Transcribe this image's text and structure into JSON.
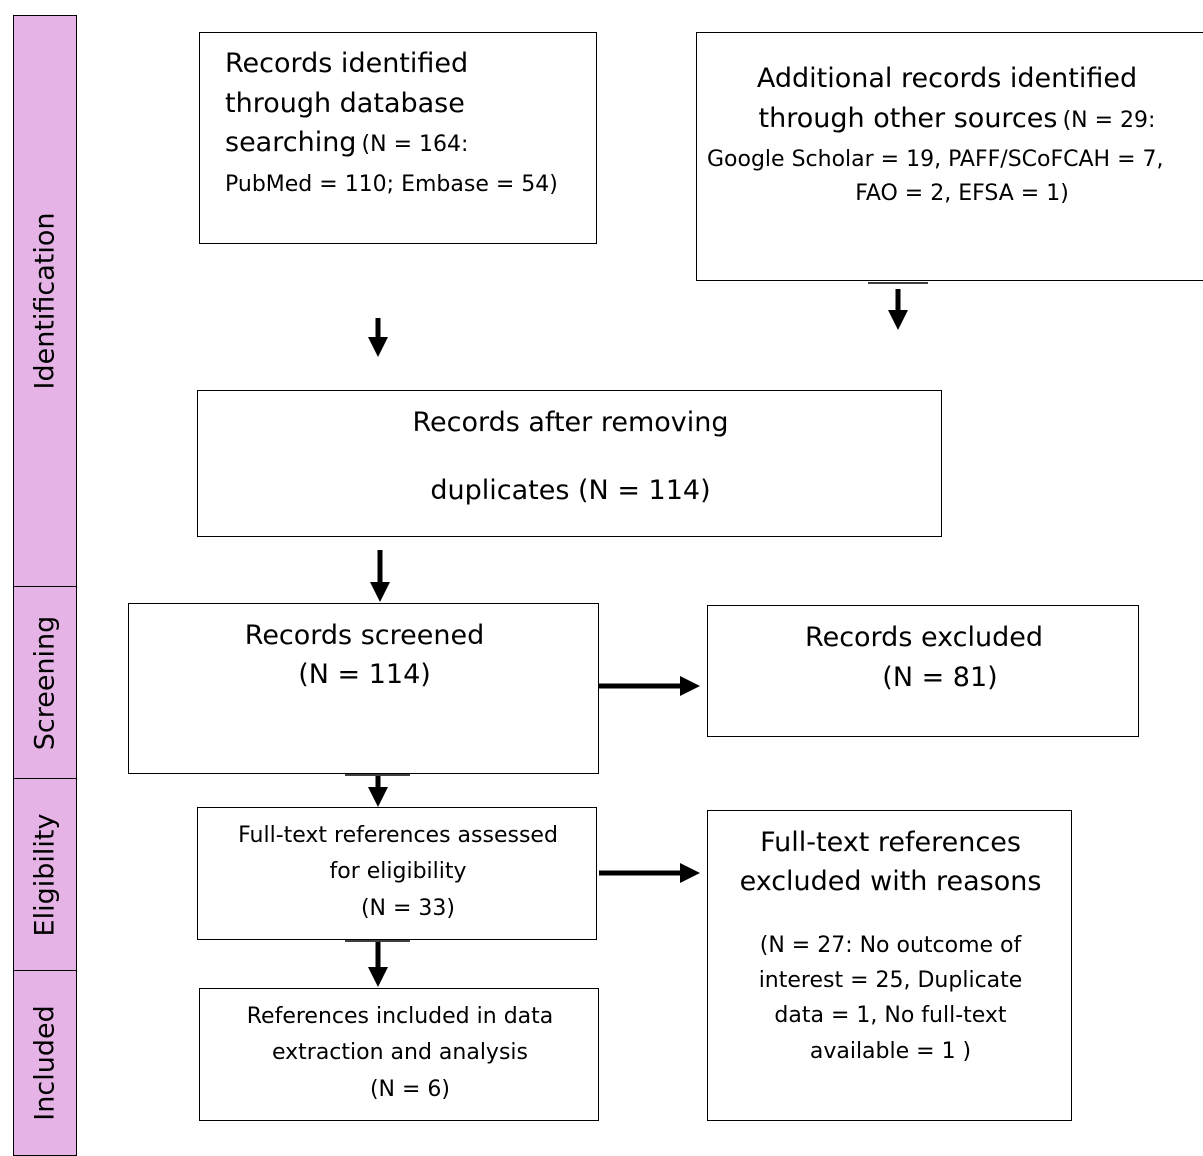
{
  "stages": {
    "identification": "Identification",
    "screening": "Screening",
    "eligibility": "Eligibility",
    "included": "Included"
  },
  "boxes": {
    "database": {
      "line1": "Records identified",
      "line2": "through database",
      "line3a": "searching",
      "line3b": "(N = 164:",
      "line4": "PubMed = 110; Embase = 54)"
    },
    "other_sources": {
      "line1": "Additional records identified",
      "line2a": "through other sources",
      "line2b": "(N = 29:",
      "line3": "Google Scholar = 19, PAFF/SCoFCAH = 7,",
      "line4": "FAO = 2, EFSA = 1)"
    },
    "after_duplicates": {
      "line1": "Records after removing",
      "line2": "duplicates (N = 114)"
    },
    "screened": {
      "line1": "Records screened",
      "line2": "(N = 114)"
    },
    "excluded": {
      "line1": "Records excluded",
      "line2": "(N = 81)"
    },
    "fulltext": {
      "line1": "Full-text references assessed",
      "line2": "for eligibility",
      "line3": "(N = 33)"
    },
    "fulltext_excluded": {
      "line1": "Full-text references",
      "line2": "excluded with reasons",
      "line3": "(N = 27: No outcome of",
      "line4": "interest = 25, Duplicate",
      "line5": "data = 1, No full-text",
      "line6": "available = 1 )"
    },
    "included": {
      "line1": "References included in data",
      "line2": "extraction and analysis",
      "line3": "(N = 6)"
    }
  },
  "colors": {
    "stage_fill": "#e6b3e6",
    "line": "#000000"
  }
}
